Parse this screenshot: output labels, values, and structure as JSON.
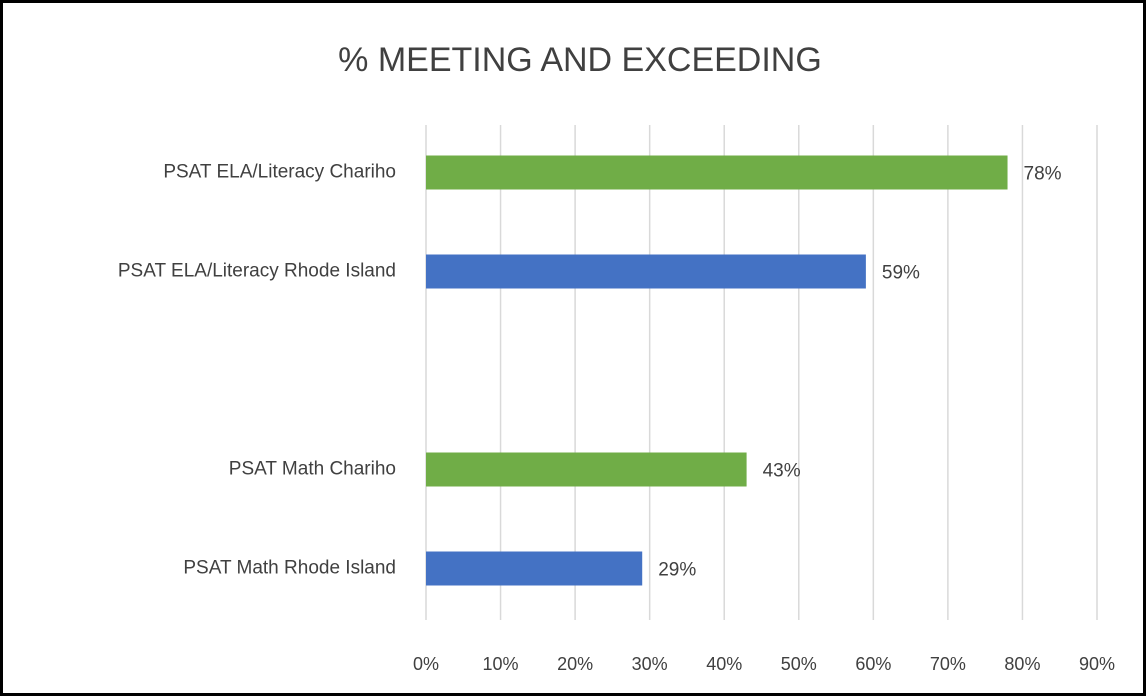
{
  "chart_data": {
    "type": "bar",
    "orientation": "horizontal",
    "title": "% MEETING AND EXCEEDING",
    "categories": [
      "PSAT ELA/Literacy Chariho",
      "PSAT ELA/Literacy Rhode Island",
      null,
      "PSAT Math Chariho",
      "PSAT Math Rhode Island"
    ],
    "values": [
      78,
      59,
      null,
      43,
      29
    ],
    "value_labels": [
      "78%",
      "59%",
      null,
      "43%",
      "29%"
    ],
    "colors": [
      "#70ad47",
      "#4472c4",
      null,
      "#70ad47",
      "#4472c4"
    ],
    "xlim": [
      0,
      90
    ],
    "xticks": [
      {
        "value": 0,
        "label": "0%"
      },
      {
        "value": 10,
        "label": "10%"
      },
      {
        "value": 20,
        "label": "20%"
      },
      {
        "value": 30,
        "label": "30%"
      },
      {
        "value": 40,
        "label": "40%"
      },
      {
        "value": 50,
        "label": "50%"
      },
      {
        "value": 60,
        "label": "60%"
      },
      {
        "value": 70,
        "label": "70%"
      },
      {
        "value": 80,
        "label": "80%"
      },
      {
        "value": 90,
        "label": "90%"
      }
    ],
    "grid": true
  }
}
